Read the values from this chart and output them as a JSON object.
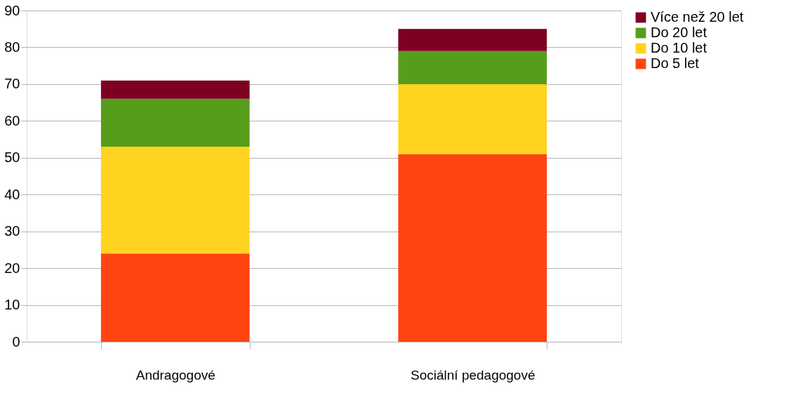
{
  "chart_data": {
    "type": "bar",
    "stacked": true,
    "categories": [
      "Andragogové",
      "Sociální pedagogové"
    ],
    "series": [
      {
        "name": "Do 5 let",
        "color": "#ff4411",
        "values": [
          24,
          51
        ]
      },
      {
        "name": "Do 10 let",
        "color": "#ffd320",
        "values": [
          29,
          19
        ]
      },
      {
        "name": "Do 20 let",
        "color": "#579d1c",
        "values": [
          13,
          9
        ]
      },
      {
        "name": "Více než 20 let",
        "color": "#7e0021",
        "values": [
          5,
          6
        ]
      }
    ],
    "ylim": [
      0,
      90
    ],
    "yticks": [
      0,
      10,
      20,
      30,
      40,
      50,
      60,
      70,
      80,
      90
    ],
    "grid": "y",
    "legend": "right"
  }
}
